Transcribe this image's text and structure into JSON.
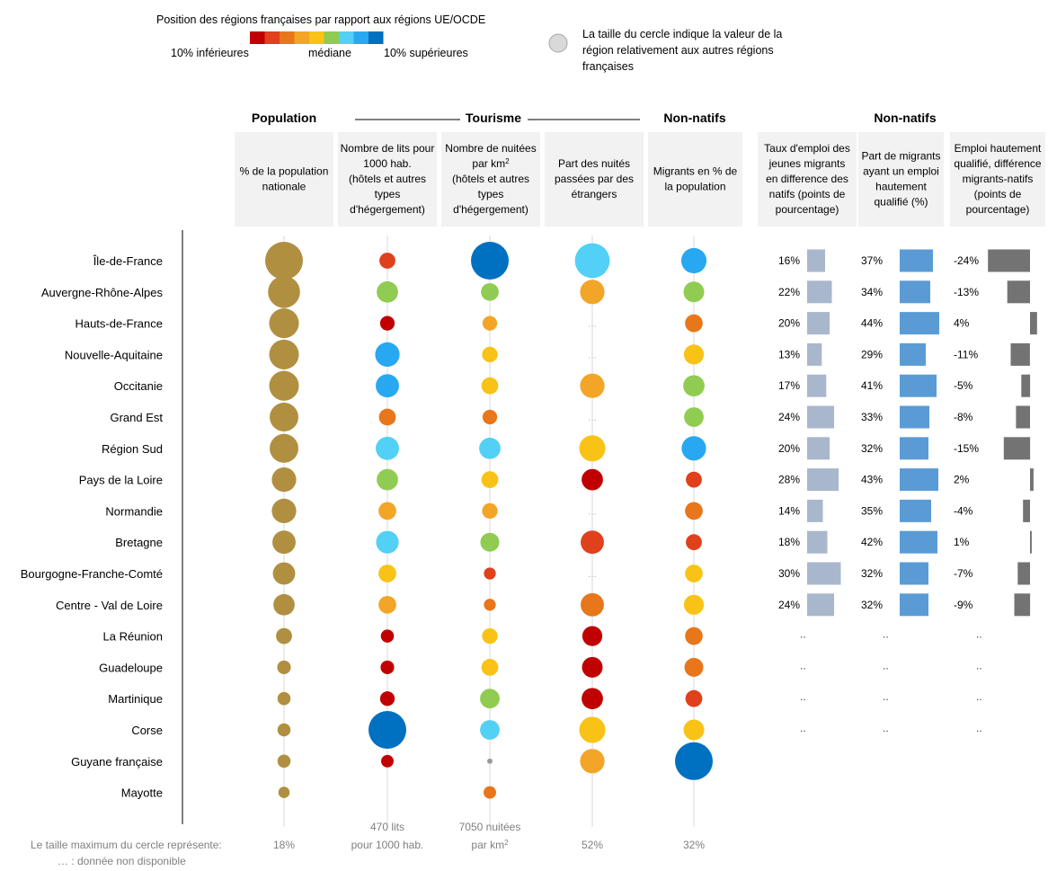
{
  "legend": {
    "title": "Position des régions françaises par rapport aux régions UE/OCDE",
    "low_label": "10% inférieures",
    "mid_label": "médiane",
    "high_label": "10% supérieures",
    "scale_colors": [
      "#c00000",
      "#e0401c",
      "#e8761a",
      "#f2a526",
      "#f8c316",
      "#90cc52",
      "#52d0f5",
      "#28a8f0",
      "#0070c0"
    ],
    "size_note": [
      "La taille du cercle indique la valeur de la",
      "région relativement aux autres régions",
      "françaises"
    ]
  },
  "groups": {
    "population": "Population",
    "tourisme": "Tourisme",
    "non_natifs_1": "Non-natifs",
    "non_natifs_2": "Non-natifs"
  },
  "column_headers": [
    [
      "% de la population",
      "nationale"
    ],
    [
      "Nombre de lits pour",
      "1000 hab.",
      "(hôtels et autres",
      "types",
      "d'hégergement)"
    ],
    [
      "Nombre de nuitées",
      "par km²",
      "(hôtels et autres",
      "types",
      "d'hégergement)"
    ],
    [
      "Part des nuités",
      "passées par des",
      "étrangers"
    ],
    [
      "Migrants en % de",
      "la population"
    ],
    [
      "Taux d'emploi des",
      "jeunes migrants",
      "en difference des",
      "natifs (points de",
      "pourcentage)"
    ],
    [
      "Part de migrants",
      "ayant un emploi",
      "hautement",
      "qualifié (%)"
    ],
    [
      "Emploi hautement",
      "qualifié, différence",
      "migrants-natifs",
      "(points de",
      "pourcentage)"
    ]
  ],
  "footer": {
    "max_note": "Le taille maximum du cercle représente:",
    "na_note": "… : donnée non disponible",
    "max_values": [
      [
        "18%"
      ],
      [
        "470 lits",
        "pour 1000 hab."
      ],
      [
        "7050 nuitées",
        "par km²"
      ],
      [
        "52%"
      ],
      [
        "32%"
      ]
    ]
  },
  "na_symbol": "…",
  "na_symbol_bars": "..",
  "chart_data": {
    "type": "table",
    "regions": [
      "Île-de-France",
      "Auvergne-Rhône-Alpes",
      "Hauts-de-France",
      "Nouvelle-Aquitaine",
      "Occitanie",
      "Grand Est",
      "Région Sud",
      "Pays de la Loire",
      "Normandie",
      "Bretagne",
      "Bourgogne-Franche-Comté",
      "Centre - Val de Loire",
      "La Réunion",
      "Guadeloupe",
      "Martinique",
      "Corse",
      "Guyane française",
      "Mayotte"
    ],
    "circle_columns": [
      {
        "name": "% de la population nationale",
        "max_value": 18,
        "sizes": [
          1.0,
          0.72,
          0.62,
          0.62,
          0.62,
          0.58,
          0.58,
          0.42,
          0.42,
          0.38,
          0.35,
          0.32,
          0.18,
          0.13,
          0.12,
          0.12,
          0.12,
          0.09
        ],
        "colors": [
          "#b09040",
          "#b09040",
          "#b09040",
          "#b09040",
          "#b09040",
          "#b09040",
          "#b09040",
          "#b09040",
          "#b09040",
          "#b09040",
          "#b09040",
          "#b09040",
          "#b09040",
          "#b09040",
          "#b09040",
          "#b09040",
          "#b09040",
          "#b09040"
        ]
      },
      {
        "name": "Nombre de lits pour 1000 hab.",
        "max_value": 470,
        "sizes": [
          0.18,
          0.32,
          0.15,
          0.42,
          0.38,
          0.2,
          0.38,
          0.32,
          0.22,
          0.36,
          0.22,
          0.22,
          0.12,
          0.13,
          0.15,
          1.0,
          0.11,
          null
        ],
        "colors": [
          "#e0401c",
          "#90cc52",
          "#c00000",
          "#28a8f0",
          "#28a8f0",
          "#e8761a",
          "#52d0f5",
          "#90cc52",
          "#f2a526",
          "#52d0f5",
          "#f8c316",
          "#f2a526",
          "#c00000",
          "#c00000",
          "#c00000",
          "#0070c0",
          "#c00000",
          null
        ]
      },
      {
        "name": "Nombre de nuitées par km²",
        "max_value": 7050,
        "sizes": [
          1.0,
          0.22,
          0.15,
          0.17,
          0.2,
          0.15,
          0.32,
          0.2,
          0.17,
          0.25,
          0.1,
          0.1,
          0.17,
          0.2,
          0.27,
          0.27,
          0.02,
          0.11
        ],
        "colors": [
          "#0070c0",
          "#90cc52",
          "#f2a526",
          "#f8c316",
          "#f8c316",
          "#e8761a",
          "#52d0f5",
          "#f8c316",
          "#f2a526",
          "#90cc52",
          "#e0401c",
          "#e8761a",
          "#f8c316",
          "#f8c316",
          "#90cc52",
          "#52d0f5",
          "#999999",
          "#e8761a"
        ]
      },
      {
        "name": "Part des nuités passées par des étrangers",
        "max_value": 52,
        "sizes": [
          0.85,
          0.42,
          null,
          null,
          0.42,
          null,
          0.48,
          0.32,
          null,
          0.38,
          null,
          0.38,
          0.28,
          0.3,
          0.32,
          0.48,
          0.42,
          null
        ],
        "colors": [
          "#52d0f5",
          "#f2a526",
          null,
          null,
          "#f2a526",
          null,
          "#f8c316",
          "#c00000",
          null,
          "#e0401c",
          null,
          "#e8761a",
          "#c00000",
          "#c00000",
          "#c00000",
          "#f8c316",
          "#f2a526",
          null
        ]
      },
      {
        "name": "Migrants en % de la population",
        "max_value": 32,
        "sizes": [
          0.45,
          0.3,
          0.22,
          0.28,
          0.32,
          0.27,
          0.42,
          0.18,
          0.22,
          0.18,
          0.22,
          0.28,
          0.22,
          0.25,
          0.2,
          0.3,
          1.0,
          null
        ],
        "colors": [
          "#28a8f0",
          "#90cc52",
          "#e8761a",
          "#f8c316",
          "#90cc52",
          "#90cc52",
          "#28a8f0",
          "#e0401c",
          "#e8761a",
          "#e0401c",
          "#f8c316",
          "#f8c316",
          "#e8761a",
          "#e8761a",
          "#e0401c",
          "#f8c316",
          "#0070c0",
          null
        ]
      }
    ],
    "bar_columns": [
      {
        "name": "Taux d'emploi des jeunes migrants en difference des natifs (points de pourcentage)",
        "labels": [
          "16%",
          "22%",
          "20%",
          "13%",
          "17%",
          "24%",
          "20%",
          "28%",
          "14%",
          "18%",
          "30%",
          "24%"
        ],
        "values": [
          16,
          22,
          20,
          13,
          17,
          24,
          20,
          28,
          14,
          18,
          30,
          24
        ],
        "color": "#a9b7cd"
      },
      {
        "name": "Part de migrants ayant un emploi hautement qualifié (%)",
        "labels": [
          "37%",
          "34%",
          "44%",
          "29%",
          "41%",
          "33%",
          "32%",
          "43%",
          "35%",
          "42%",
          "32%",
          "32%"
        ],
        "values": [
          37,
          34,
          44,
          29,
          41,
          33,
          32,
          43,
          35,
          42,
          32,
          32
        ],
        "color": "#5b9bd5"
      },
      {
        "name": "Emploi hautement qualifié, différence migrants-natifs (points de pourcentage)",
        "labels": [
          "-24%",
          "-13%",
          "4%",
          "-11%",
          "-5%",
          "-8%",
          "-15%",
          "2%",
          "-4%",
          "1%",
          "-7%",
          "-9%"
        ],
        "values": [
          -24,
          -13,
          4,
          -11,
          -5,
          -8,
          -15,
          2,
          -4,
          1,
          -7,
          -9
        ],
        "color": "#737373"
      }
    ],
    "bar_rows_with_data": 12
  }
}
